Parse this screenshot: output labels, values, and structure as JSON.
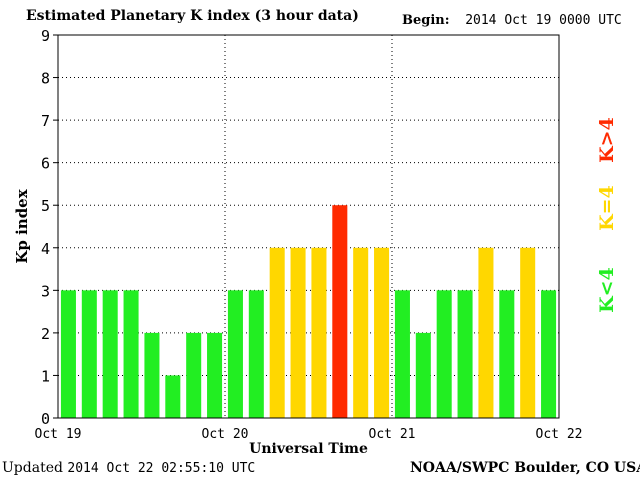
{
  "header": {
    "title": "Estimated Planetary K index (3 hour data)",
    "begin_label": "Begin:",
    "begin_value": "2014 Oct 19 0000 UTC"
  },
  "footer": {
    "updated_label": "Updated",
    "updated_value": "2014 Oct 22 02:55:10 UTC",
    "credit": "NOAA/SWPC Boulder, CO USA"
  },
  "colors": {
    "low": "#22ee22",
    "mid": "#ffd700",
    "high": "#ff2a00"
  },
  "chart_data": {
    "type": "bar",
    "title": "Estimated Planetary K index (3 hour data)",
    "xlabel": "Universal Time",
    "ylabel": "Kp index",
    "ylim": [
      0,
      9
    ],
    "yticks": [
      "0",
      "1",
      "2",
      "3",
      "4",
      "5",
      "6",
      "7",
      "8",
      "9"
    ],
    "xticks": [
      "Oct 19",
      "Oct 20",
      "Oct 21",
      "Oct 22"
    ],
    "grid": true,
    "legend": {
      "placement": "right",
      "entries": [
        {
          "label": "K<4",
          "color": "#22ee22"
        },
        {
          "label": "K=4",
          "color": "#ffd700"
        },
        {
          "label": "K>4",
          "color": "#ff2a00"
        }
      ]
    },
    "values": [
      3,
      3,
      3,
      3,
      2,
      1,
      2,
      2,
      3,
      3,
      4,
      4,
      4,
      5,
      4,
      4,
      3,
      2,
      3,
      3,
      4,
      3,
      4,
      3
    ]
  }
}
